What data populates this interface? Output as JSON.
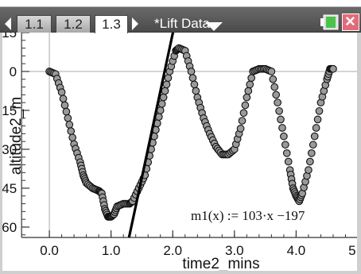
{
  "tabs": [
    {
      "label": "1.1",
      "active": false
    },
    {
      "label": "1.2",
      "active": false
    },
    {
      "label": "1.3",
      "active": true
    }
  ],
  "document_title": "*Lift Data",
  "icons": {
    "nav_left": "triangle-left-icon",
    "nav_right": "triangle-right-icon",
    "doc_menu": "chevron-down-icon",
    "battery": "battery-icon",
    "close": "close-icon"
  },
  "close_glyph": "×",
  "chart_data": {
    "type": "scatter",
    "xlabel": "time2_mins",
    "ylabel": "altitude2_m",
    "xlim": [
      -0.8,
      5.0
    ],
    "ylim": [
      -64,
      15
    ],
    "x_ticks": [
      {
        "value": 0,
        "label": "0.0"
      },
      {
        "value": 1,
        "label": "1.0"
      },
      {
        "value": 2,
        "label": "2.0"
      },
      {
        "value": 3,
        "label": "3.0"
      },
      {
        "value": 4,
        "label": "4.0"
      },
      {
        "value": 5,
        "label": "5.0"
      }
    ],
    "y_ticks": [
      {
        "value": 15,
        "label": "15"
      },
      {
        "value": 0,
        "label": "0"
      },
      {
        "value": -15,
        "label": "-15"
      },
      {
        "value": -30,
        "label": "-30"
      },
      {
        "value": -45,
        "label": "-45"
      },
      {
        "value": -60,
        "label": "-60"
      }
    ],
    "series": [
      {
        "points": [
          [
            0.0,
            0
          ],
          [
            0.1,
            -1
          ],
          [
            0.2,
            -8
          ],
          [
            0.3,
            -18
          ],
          [
            0.4,
            -28
          ],
          [
            0.5,
            -35
          ],
          [
            0.55,
            -40
          ],
          [
            0.6,
            -43
          ],
          [
            0.7,
            -45
          ],
          [
            0.8,
            -46
          ],
          [
            0.85,
            -47
          ],
          [
            0.9,
            -53
          ],
          [
            0.95,
            -56
          ],
          [
            1.0,
            -56
          ],
          [
            1.05,
            -55
          ],
          [
            1.1,
            -52
          ],
          [
            1.2,
            -51
          ],
          [
            1.3,
            -51
          ],
          [
            1.35,
            -50
          ],
          [
            1.45,
            -45
          ],
          [
            1.55,
            -40
          ],
          [
            1.65,
            -30
          ],
          [
            1.75,
            -20
          ],
          [
            1.85,
            -10
          ],
          [
            1.95,
            0
          ],
          [
            2.05,
            8
          ],
          [
            2.1,
            9
          ],
          [
            2.2,
            8
          ],
          [
            2.3,
            0
          ],
          [
            2.4,
            -10
          ],
          [
            2.5,
            -18
          ],
          [
            2.6,
            -24
          ],
          [
            2.7,
            -29
          ],
          [
            2.8,
            -32
          ],
          [
            2.9,
            -32
          ],
          [
            3.0,
            -30
          ],
          [
            3.1,
            -22
          ],
          [
            3.2,
            -10
          ],
          [
            3.3,
            0
          ],
          [
            3.4,
            1
          ],
          [
            3.5,
            1
          ],
          [
            3.6,
            0
          ],
          [
            3.7,
            -12
          ],
          [
            3.8,
            -25
          ],
          [
            3.9,
            -38
          ],
          [
            3.95,
            -45
          ],
          [
            4.0,
            -48
          ],
          [
            4.05,
            -50
          ],
          [
            4.1,
            -47
          ],
          [
            4.2,
            -38
          ],
          [
            4.3,
            -25
          ],
          [
            4.4,
            -12
          ],
          [
            4.5,
            -3
          ],
          [
            4.55,
            1
          ],
          [
            4.6,
            1
          ]
        ]
      }
    ],
    "fit_line": {
      "slope": 103,
      "intercept": -197,
      "label": "m1(x) := 103·x −197"
    }
  }
}
